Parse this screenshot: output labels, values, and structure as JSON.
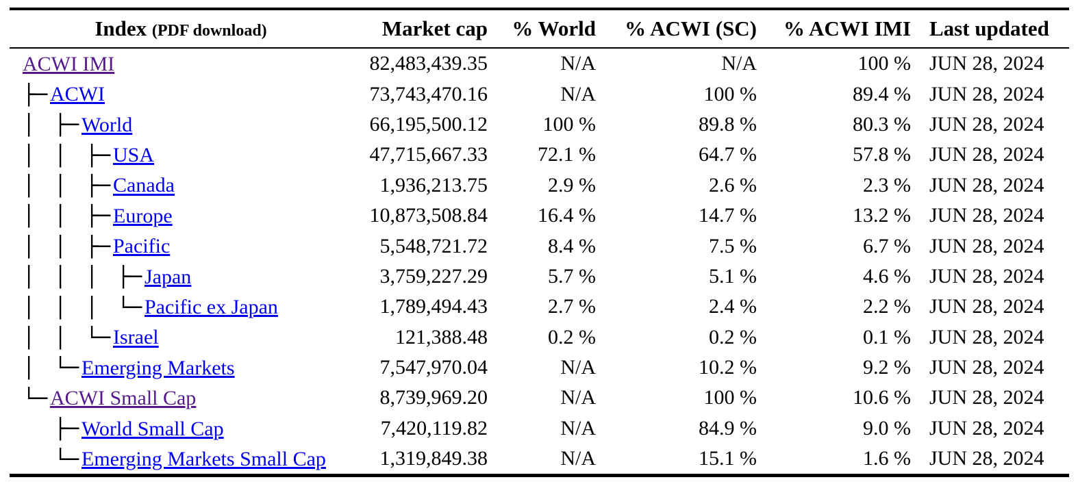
{
  "link_colors": {
    "unvisited": "#0000EE",
    "visited": "#551A8B"
  },
  "table": {
    "columns": [
      {
        "label": "Index",
        "sublabel": "(PDF download)"
      },
      {
        "label": "Market cap"
      },
      {
        "label": "% World"
      },
      {
        "label": "% ACWI (SC)"
      },
      {
        "label": "% ACWI IMI"
      },
      {
        "label": "Last updated"
      }
    ],
    "rows": [
      {
        "name": "ACWI IMI",
        "slug": "acwi-imi",
        "prefix": [],
        "visited": true,
        "market_cap": "82,483,439.35",
        "pct_world": "N/A",
        "pct_acwi_sc": "N/A",
        "pct_acwi_imi": "100 %",
        "last_updated": "JUN 28, 2024"
      },
      {
        "name": "ACWI",
        "slug": "acwi",
        "prefix": [
          "├─"
        ],
        "visited": false,
        "market_cap": "73,743,470.16",
        "pct_world": "N/A",
        "pct_acwi_sc": "100 %",
        "pct_acwi_imi": "89.4 %",
        "last_updated": "JUN 28, 2024"
      },
      {
        "name": "World",
        "slug": "world",
        "prefix": [
          "│",
          "├─"
        ],
        "visited": false,
        "market_cap": "66,195,500.12",
        "pct_world": "100 %",
        "pct_acwi_sc": "89.8 %",
        "pct_acwi_imi": "80.3 %",
        "last_updated": "JUN 28, 2024"
      },
      {
        "name": "USA",
        "slug": "usa",
        "prefix": [
          "│",
          "│",
          "├─"
        ],
        "visited": false,
        "market_cap": "47,715,667.33",
        "pct_world": "72.1 %",
        "pct_acwi_sc": "64.7 %",
        "pct_acwi_imi": "57.8 %",
        "last_updated": "JUN 28, 2024"
      },
      {
        "name": "Canada",
        "slug": "canada",
        "prefix": [
          "│",
          "│",
          "├─"
        ],
        "visited": false,
        "market_cap": "1,936,213.75",
        "pct_world": "2.9 %",
        "pct_acwi_sc": "2.6 %",
        "pct_acwi_imi": "2.3 %",
        "last_updated": "JUN 28, 2024"
      },
      {
        "name": "Europe",
        "slug": "europe",
        "prefix": [
          "│",
          "│",
          "├─"
        ],
        "visited": false,
        "market_cap": "10,873,508.84",
        "pct_world": "16.4 %",
        "pct_acwi_sc": "14.7 %",
        "pct_acwi_imi": "13.2 %",
        "last_updated": "JUN 28, 2024"
      },
      {
        "name": "Pacific",
        "slug": "pacific",
        "prefix": [
          "│",
          "│",
          "├─"
        ],
        "visited": false,
        "market_cap": "5,548,721.72",
        "pct_world": "8.4 %",
        "pct_acwi_sc": "7.5 %",
        "pct_acwi_imi": "6.7 %",
        "last_updated": "JUN 28, 2024"
      },
      {
        "name": "Japan",
        "slug": "japan",
        "prefix": [
          "│",
          "│",
          "│",
          "├─"
        ],
        "visited": false,
        "market_cap": "3,759,227.29",
        "pct_world": "5.7 %",
        "pct_acwi_sc": "5.1 %",
        "pct_acwi_imi": "4.6 %",
        "last_updated": "JUN 28, 2024"
      },
      {
        "name": "Pacific ex Japan",
        "slug": "pacific-ex-japan",
        "prefix": [
          "│",
          "│",
          "│",
          "└─"
        ],
        "visited": false,
        "market_cap": "1,789,494.43",
        "pct_world": "2.7 %",
        "pct_acwi_sc": "2.4 %",
        "pct_acwi_imi": "2.2 %",
        "last_updated": "JUN 28, 2024"
      },
      {
        "name": "Israel",
        "slug": "israel",
        "prefix": [
          "│",
          "│",
          "└─"
        ],
        "visited": false,
        "market_cap": "121,388.48",
        "pct_world": "0.2 %",
        "pct_acwi_sc": "0.2 %",
        "pct_acwi_imi": "0.1 %",
        "last_updated": "JUN 28, 2024"
      },
      {
        "name": "Emerging Markets",
        "slug": "emerging-markets",
        "prefix": [
          "│",
          "└─"
        ],
        "visited": false,
        "market_cap": "7,547,970.04",
        "pct_world": "N/A",
        "pct_acwi_sc": "10.2 %",
        "pct_acwi_imi": "9.2 %",
        "last_updated": "JUN 28, 2024"
      },
      {
        "name": "ACWI Small Cap",
        "slug": "acwi-small-cap",
        "prefix": [
          "└─"
        ],
        "visited": true,
        "market_cap": "8,739,969.20",
        "pct_world": "N/A",
        "pct_acwi_sc": "100 %",
        "pct_acwi_imi": "10.6 %",
        "last_updated": "JUN 28, 2024"
      },
      {
        "name": "World Small Cap",
        "slug": "world-small-cap",
        "prefix": [
          " ",
          "├─"
        ],
        "visited": false,
        "market_cap": "7,420,119.82",
        "pct_world": "N/A",
        "pct_acwi_sc": "84.9 %",
        "pct_acwi_imi": "9.0 %",
        "last_updated": "JUN 28, 2024"
      },
      {
        "name": "Emerging Markets Small Cap",
        "slug": "emerging-markets-small-cap",
        "prefix": [
          " ",
          "└─"
        ],
        "visited": false,
        "market_cap": "1,319,849.38",
        "pct_world": "N/A",
        "pct_acwi_sc": "15.1 %",
        "pct_acwi_imi": "1.6 %",
        "last_updated": "JUN 28, 2024"
      }
    ]
  }
}
